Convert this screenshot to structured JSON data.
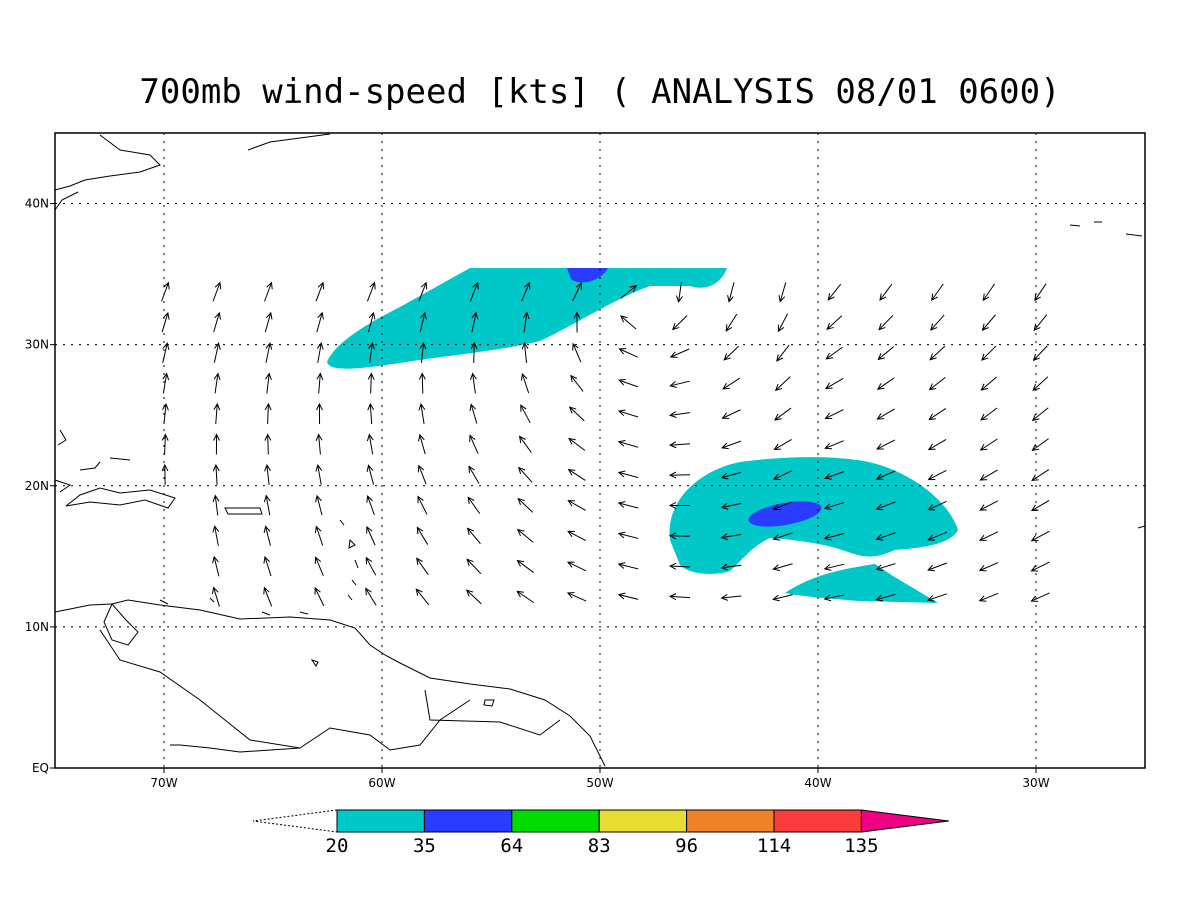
{
  "map": {
    "title": "700mb wind-speed [kts] ( ANALYSIS 08/01 0600)",
    "lonlim": [
      -75,
      -25
    ],
    "latlim": [
      0,
      45
    ],
    "lon_ticks": [
      {
        "value": -70,
        "label": "70W"
      },
      {
        "value": -60,
        "label": "60W"
      },
      {
        "value": -50,
        "label": "50W"
      },
      {
        "value": -40,
        "label": "40W"
      },
      {
        "value": -30,
        "label": "30W"
      }
    ],
    "lat_ticks": [
      {
        "value": 40,
        "label": "40N"
      },
      {
        "value": 30,
        "label": "30N"
      },
      {
        "value": 20,
        "label": "20N"
      },
      {
        "value": 10,
        "label": "10N"
      },
      {
        "value": 0,
        "label": "EQ"
      }
    ],
    "grid": true,
    "colorbar": {
      "levels": [
        20,
        35,
        64,
        83,
        96,
        114,
        135
      ],
      "colors": [
        "#00c8c8",
        "#2a3cff",
        "#00dc00",
        "#e6dc32",
        "#f08228",
        "#fa3c3c",
        "#f00082"
      ]
    }
  }
}
